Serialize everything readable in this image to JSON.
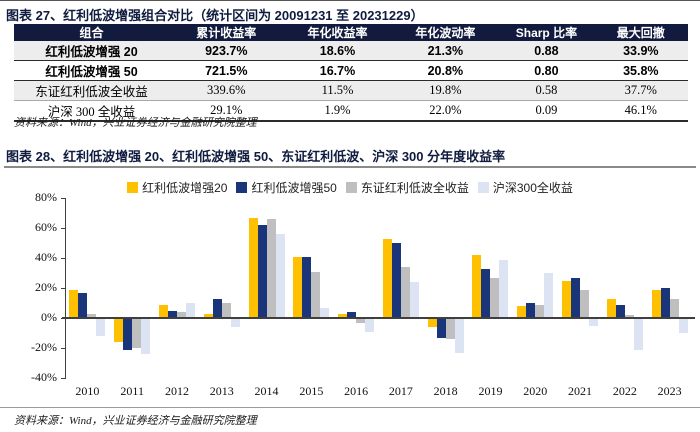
{
  "accent_colors": {
    "header_bg": "#121b3e",
    "title_text": "#101c3f",
    "series_yellow": "#FFC000",
    "series_navy": "#1A357A",
    "series_gray": "#BFBFBF",
    "series_lightblue": "#DCE3F2"
  },
  "table_section": {
    "title": "图表 27、红利低波增强组合对比（统计区间为 20091231 至 20231229）",
    "source": "资料来源：Wind，兴业证券经济与金融研究院整理",
    "table": {
      "headers": [
        "组合",
        "累计收益率",
        "年化收益率",
        "年化波动率",
        "Sharp 比率",
        "最大回撤"
      ],
      "rows": [
        {
          "cells": [
            "红利低波增强 20",
            "923.7%",
            "18.6%",
            "21.3%",
            "0.88",
            "33.9%"
          ],
          "bold": true,
          "shade": true,
          "border": "b-dark"
        },
        {
          "cells": [
            "红利低波增强 50",
            "721.5%",
            "16.7%",
            "20.8%",
            "0.80",
            "35.8%"
          ],
          "bold": true,
          "shade": false,
          "border": "b-dark"
        },
        {
          "cells": [
            "东证红利低波全收益",
            "339.6%",
            "11.5%",
            "19.8%",
            "0.58",
            "37.7%"
          ],
          "bold": false,
          "shade": true,
          "border": "b-thin"
        },
        {
          "cells": [
            "沪深 300 全收益",
            "29.1%",
            "1.9%",
            "22.0%",
            "0.09",
            "46.1%"
          ],
          "bold": false,
          "shade": false,
          "border": "b-end"
        }
      ]
    }
  },
  "chart_section": {
    "title": "图表 28、红利低波增强 20、红利低波增强 50、东证红利低波、沪深 300 分年度收益率",
    "source": "资料来源：Wind，兴业证券经济与金融研究院整理"
  },
  "chart_data": {
    "type": "bar",
    "title": "红利低波增强 20、红利低波增强 50、东证红利低波、沪深 300 分年度收益率",
    "categories": [
      "2010",
      "2011",
      "2012",
      "2013",
      "2014",
      "2015",
      "2016",
      "2017",
      "2018",
      "2019",
      "2020",
      "2021",
      "2022",
      "2023"
    ],
    "series": [
      {
        "name": "红利低波增强20",
        "color": "#FFC000",
        "values": [
          19,
          -16,
          9,
          3,
          67,
          41,
          3,
          53,
          -6,
          42,
          8,
          25,
          13,
          19
        ]
      },
      {
        "name": "红利低波增强50",
        "color": "#1A357A",
        "values": [
          17,
          -21,
          5,
          13,
          62,
          41,
          4,
          50,
          -13,
          33,
          10,
          27,
          9,
          20
        ]
      },
      {
        "name": "东证红利低波全收益",
        "color": "#BFBFBF",
        "values": [
          3,
          -20,
          4,
          10,
          66,
          31,
          -3,
          34,
          -14,
          27,
          9,
          19,
          2,
          13
        ]
      },
      {
        "name": "沪深300全收益",
        "color": "#DCE3F2",
        "values": [
          -12,
          -24,
          10,
          -6,
          56,
          7,
          -9,
          24,
          -23,
          39,
          30,
          -5,
          -21,
          -10
        ]
      }
    ],
    "ylim": [
      -40,
      80
    ],
    "ytick_labels": [
      "80%",
      "60%",
      "40%",
      "20%",
      "0%",
      "-20%",
      "-40%"
    ],
    "ytick_values": [
      80,
      60,
      40,
      20,
      0,
      -20,
      -40
    ],
    "grid": false,
    "legend_position": "top-center",
    "zero_line": true
  }
}
